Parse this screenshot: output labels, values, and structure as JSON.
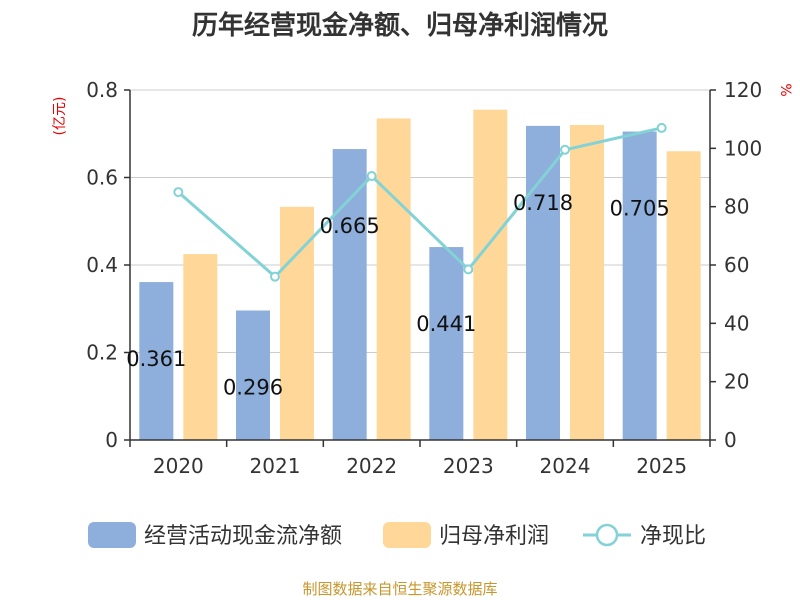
{
  "colors": {
    "bar_cash": "#8eaedb",
    "bar_profit": "#ffd899",
    "line": "#82d2d6",
    "axis": "#333333",
    "grid": "#cccccc",
    "unit": "#e60000",
    "source": "#c8962c"
  },
  "source": "制图数据来自恒生聚源数据库",
  "chart_data": {
    "type": "bar",
    "title": "历年经营现金净额、归母净利润情况",
    "categories": [
      "2020",
      "2021",
      "2022",
      "2023",
      "2024",
      "2025"
    ],
    "y_left": {
      "unit": "(亿元)",
      "range": [
        0,
        0.8
      ],
      "ticks": [
        "0",
        "0.2",
        "0.4",
        "0.6",
        "0.8"
      ]
    },
    "y_right": {
      "unit": "%",
      "range": [
        0,
        120
      ],
      "ticks": [
        "0",
        "20",
        "40",
        "60",
        "80",
        "100",
        "120"
      ]
    },
    "grid": true,
    "legend_position": "bottom",
    "series": [
      {
        "name": "经营活动现金流净额",
        "type": "bar",
        "axis": "left",
        "values": [
          0.361,
          0.296,
          0.665,
          0.441,
          0.718,
          0.705
        ],
        "labels": [
          "0.361",
          "0.296",
          "0.665",
          "0.441",
          "0.718",
          "0.705"
        ]
      },
      {
        "name": "归母净利润",
        "type": "bar",
        "axis": "left",
        "values": [
          0.425,
          0.533,
          0.735,
          0.755,
          0.72,
          0.66
        ]
      },
      {
        "name": "净现比",
        "type": "line",
        "axis": "right",
        "values": [
          85,
          56,
          90.5,
          58.5,
          99.5,
          107
        ]
      }
    ]
  }
}
